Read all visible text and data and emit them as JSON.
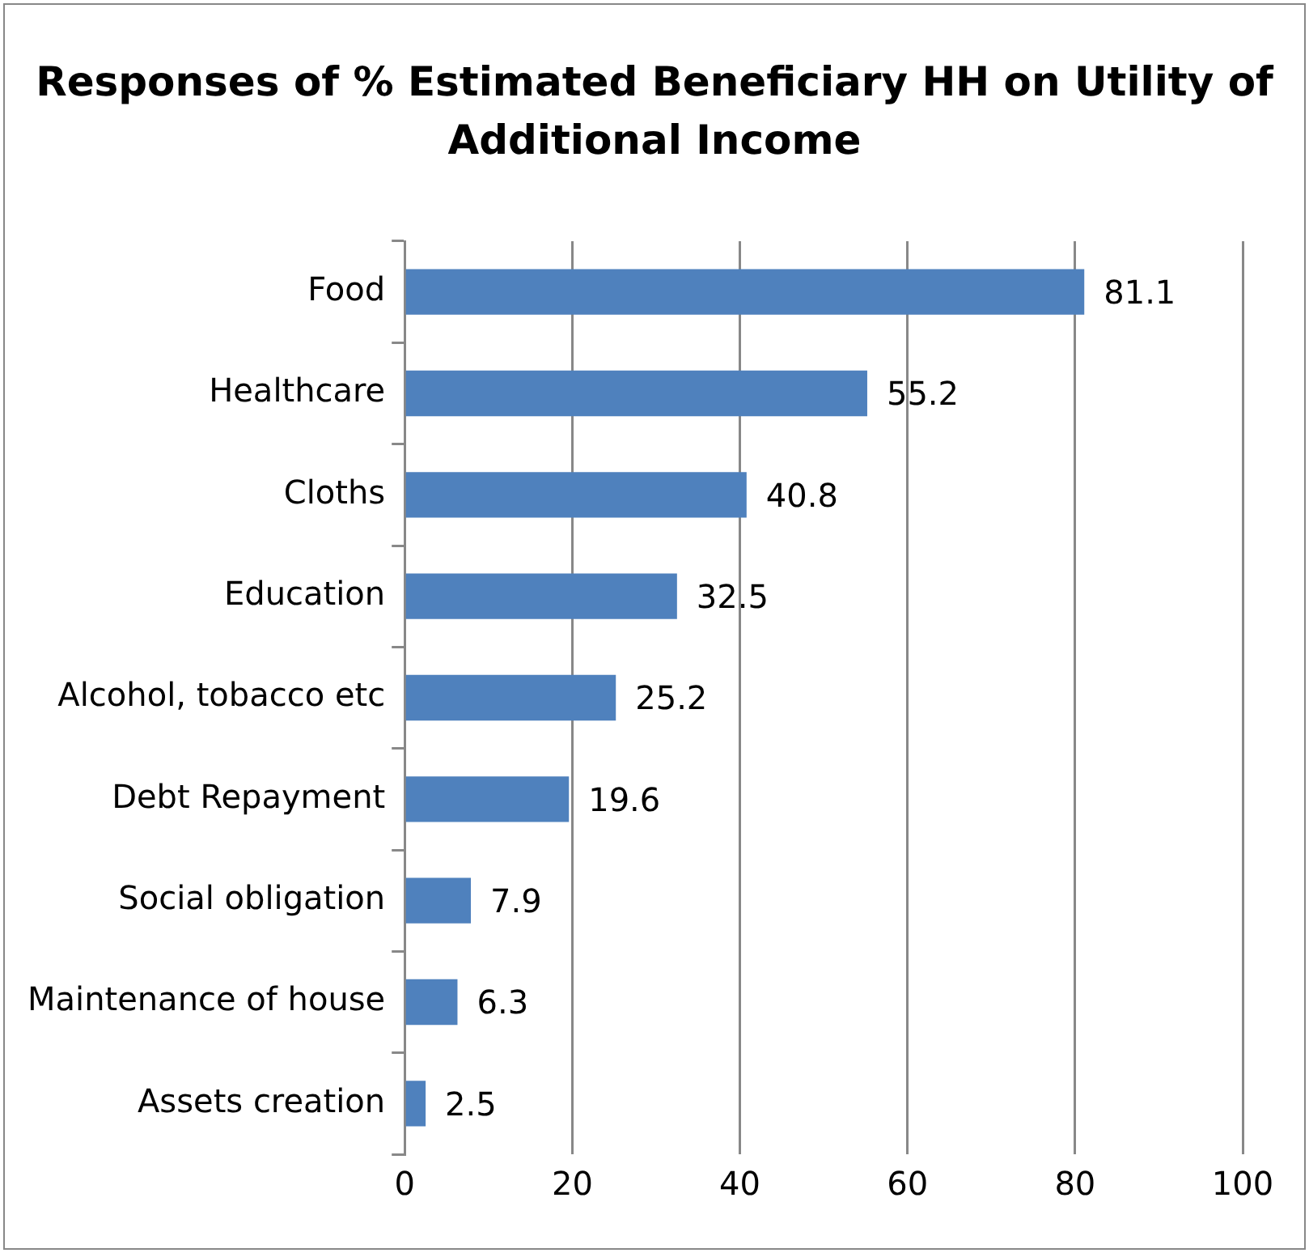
{
  "chart_data": {
    "type": "bar",
    "orientation": "horizontal",
    "title": "Responses of % Estimated Beneficiary HH on Utility of Additional Income",
    "categories": [
      "Food",
      "Healthcare",
      "Cloths",
      "Education",
      "Alcohol, tobacco etc",
      "Debt Repayment",
      "Social obligation",
      "Maintenance of house",
      "Assets creation"
    ],
    "values": [
      81.1,
      55.2,
      40.8,
      32.5,
      25.2,
      19.6,
      7.9,
      6.3,
      2.5
    ],
    "color": "#4f81bd",
    "xlim": [
      0,
      100
    ],
    "xticks": [
      0,
      20,
      40,
      60,
      80,
      100
    ],
    "grid": "x",
    "data_labels": true,
    "legend": false
  }
}
